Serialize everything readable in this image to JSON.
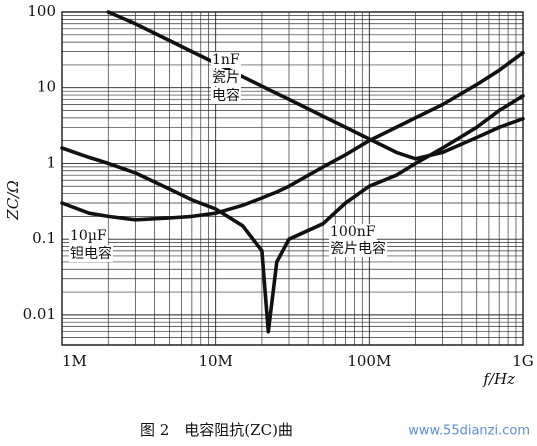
{
  "chart_data": {
    "type": "line",
    "y_label": "ZC/Ω",
    "x_label": "f/Hz",
    "caption": "图 2　电容阻抗(ZC)曲",
    "watermark": "www.55dianzi.com",
    "log_x": true,
    "log_y": true,
    "grid": true,
    "minor_grid": true,
    "xlim": [
      1000000,
      1000000000
    ],
    "ylim": [
      0.004,
      100
    ],
    "xticks": [
      {
        "value": 1000000,
        "label": "1M"
      },
      {
        "value": 10000000,
        "label": "10M"
      },
      {
        "value": 100000000,
        "label": "100M"
      },
      {
        "value": 1000000000,
        "label": "1G"
      }
    ],
    "yticks": [
      100,
      10,
      1,
      0.1,
      0.01
    ],
    "x": [
      1000000,
      1500000,
      2000000,
      3000000,
      5000000,
      7000000,
      10000000,
      15000000,
      20000000,
      22000000,
      25000000,
      30000000,
      50000000,
      70000000,
      100000000,
      150000000,
      200000000,
      300000000,
      500000000,
      700000000,
      1000000000
    ],
    "series": [
      {
        "name": "1nF 瓷片电容",
        "color": "#111111",
        "values": [
          null,
          null,
          100,
          70,
          42,
          30,
          21,
          14,
          10.5,
          9.5,
          8.4,
          7,
          4.2,
          3,
          2.1,
          1.4,
          1.15,
          1.4,
          2.2,
          3,
          3.9
        ]
      },
      {
        "name": "100nF 瓷片电容",
        "color": "#111111",
        "values": [
          1.6,
          1.2,
          1.0,
          0.75,
          0.46,
          0.33,
          0.25,
          0.15,
          0.07,
          0.006,
          0.05,
          0.1,
          0.16,
          0.3,
          0.5,
          0.7,
          1.0,
          1.6,
          3,
          5,
          7.8
        ]
      },
      {
        "name": "10µF 钽电容",
        "color": "#111111",
        "values": [
          0.3,
          0.22,
          0.2,
          0.18,
          0.19,
          0.2,
          0.22,
          0.28,
          0.35,
          0.38,
          0.42,
          0.5,
          0.9,
          1.3,
          2,
          3,
          4,
          6,
          11,
          17,
          29
        ]
      }
    ],
    "annotations": [
      [
        "1nF",
        "瓷片",
        "电容"
      ],
      [
        "100nF",
        "瓷片电容"
      ],
      [
        "10µF",
        "钽电容"
      ]
    ]
  }
}
